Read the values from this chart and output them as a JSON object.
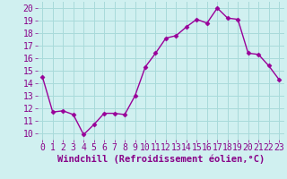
{
  "x": [
    0,
    1,
    2,
    3,
    4,
    5,
    6,
    7,
    8,
    9,
    10,
    11,
    12,
    13,
    14,
    15,
    16,
    17,
    18,
    19,
    20,
    21,
    22,
    23
  ],
  "y": [
    14.5,
    11.7,
    11.8,
    11.5,
    9.9,
    10.7,
    11.6,
    11.6,
    11.5,
    13.0,
    15.3,
    16.4,
    17.6,
    17.8,
    18.5,
    19.1,
    18.8,
    20.0,
    19.2,
    19.1,
    16.4,
    16.3,
    15.4,
    14.3
  ],
  "line_color": "#990099",
  "marker": "D",
  "marker_size": 2.5,
  "bg_color": "#d0f0f0",
  "grid_color": "#a8dada",
  "xlabel": "Windchill (Refroidissement éolien,°C)",
  "xlabel_fontsize": 7.5,
  "ylabel_values": [
    10,
    11,
    12,
    13,
    14,
    15,
    16,
    17,
    18,
    19,
    20
  ],
  "xlim": [
    -0.5,
    23.5
  ],
  "ylim": [
    9.5,
    20.5
  ],
  "tick_fontsize": 7,
  "tick_color": "#880088"
}
